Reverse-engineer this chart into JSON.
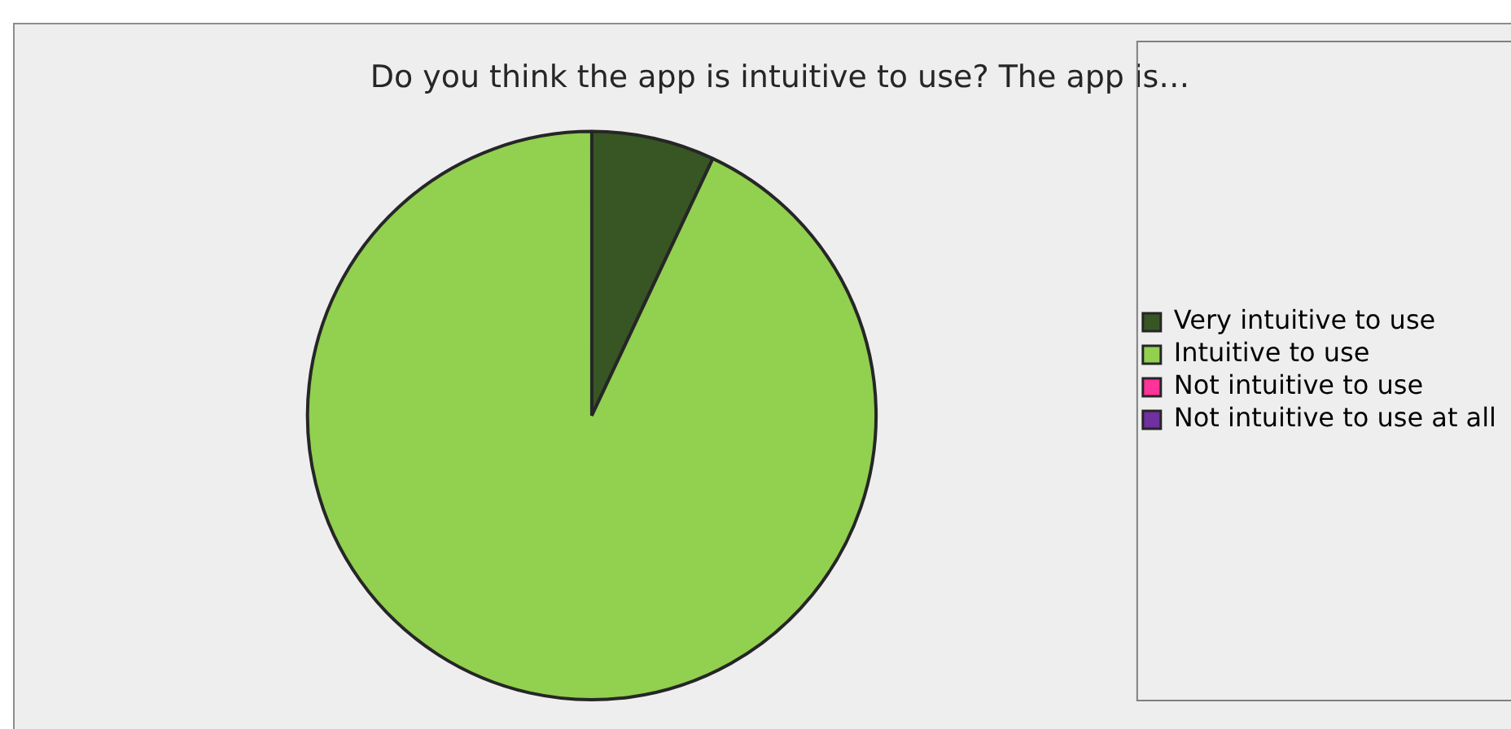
{
  "chart_data": {
    "type": "pie",
    "title": "Do you think the app is intuitive to use? The app is…",
    "categories": [
      "Very intuitive to use",
      "Intuitive to use",
      "Not intuitive to use",
      "Not intuitive to use at all"
    ],
    "values": [
      7,
      93,
      0,
      0
    ],
    "colors": [
      "#375623",
      "#92d050",
      "#ff3399",
      "#7030a0"
    ],
    "legend": "right"
  }
}
